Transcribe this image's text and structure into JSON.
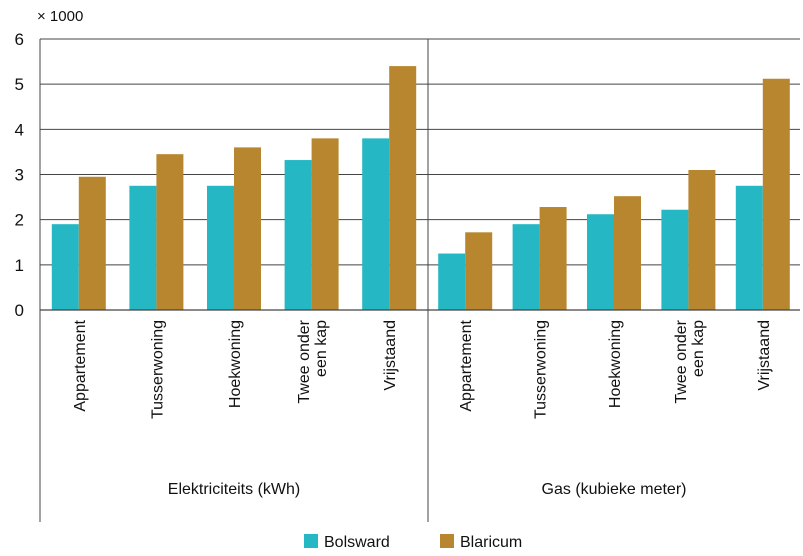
{
  "chart_data": {
    "type": "bar",
    "unit_label": "× 1000",
    "ylim": [
      0,
      6
    ],
    "yticks": [
      0,
      1,
      2,
      3,
      4,
      5,
      6
    ],
    "grid": true,
    "legend_position": "bottom",
    "groups": [
      {
        "label": "Elektriciteits (kWh)",
        "categories": [
          [
            "Appartement"
          ],
          [
            "Tusserwoning"
          ],
          [
            "Hoekwoning"
          ],
          [
            "Twee onder",
            "een kap"
          ],
          [
            "Vrijstaand"
          ]
        ],
        "series": [
          {
            "name": "Bolsward",
            "values": [
              1.9,
              2.75,
              2.75,
              3.32,
              3.8
            ]
          },
          {
            "name": "Blaricum",
            "values": [
              2.95,
              3.45,
              3.6,
              3.8,
              5.4
            ]
          }
        ]
      },
      {
        "label": "Gas (kubieke meter)",
        "categories": [
          [
            "Appartement"
          ],
          [
            "Tusserwoning"
          ],
          [
            "Hoekwoning"
          ],
          [
            "Twee onder",
            "een kap"
          ],
          [
            "Vrijstaand"
          ]
        ],
        "series": [
          {
            "name": "Bolsward",
            "values": [
              1.25,
              1.9,
              2.12,
              2.22,
              2.75
            ]
          },
          {
            "name": "Blaricum",
            "values": [
              1.72,
              2.28,
              2.52,
              3.1,
              5.12
            ]
          }
        ]
      }
    ],
    "colors": {
      "Bolsward": "#25b7c4",
      "Blaricum": "#b8862f"
    }
  }
}
